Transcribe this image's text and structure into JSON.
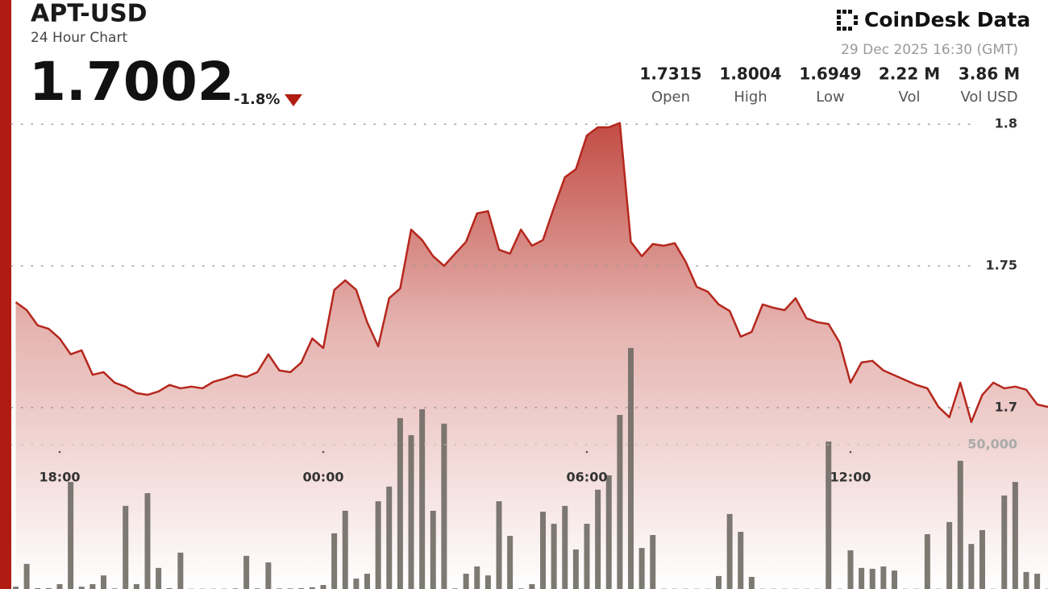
{
  "header": {
    "symbol": "APT-USD",
    "subtitle": "24 Hour Chart",
    "price": "1.7002",
    "change": "-1.8%",
    "brand": "CoinDesk Data",
    "timestamp": "29 Dec 2025 16:30 (GMT)",
    "stats": [
      {
        "value": "1.7315",
        "label": "Open"
      },
      {
        "value": "1.8004",
        "label": "High"
      },
      {
        "value": "1.6949",
        "label": "Low"
      },
      {
        "value": "2.22 M",
        "label": "Vol"
      },
      {
        "value": "3.86 M",
        "label": "Vol USD"
      }
    ]
  },
  "chart_data": {
    "type": "line",
    "categories": [
      null,
      null,
      null,
      null,
      "18:00",
      null,
      null,
      null,
      null,
      null,
      null,
      null,
      null,
      null,
      null,
      null,
      null,
      null,
      null,
      null,
      null,
      null,
      null,
      null,
      null,
      null,
      null,
      null,
      "00:00",
      null,
      null,
      null,
      null,
      null,
      null,
      null,
      null,
      null,
      null,
      null,
      null,
      null,
      null,
      null,
      null,
      null,
      null,
      null,
      null,
      null,
      null,
      null,
      "06:00",
      null,
      null,
      null,
      null,
      null,
      null,
      null,
      null,
      null,
      null,
      null,
      null,
      null,
      null,
      null,
      null,
      null,
      null,
      null,
      null,
      null,
      null,
      null,
      "12:00",
      null,
      null,
      null,
      null,
      null,
      null,
      null,
      null,
      null,
      null,
      null,
      null,
      null,
      null,
      null,
      null,
      null,
      null
    ],
    "series": [
      {
        "name": "Price",
        "color": "#b5271d",
        "values": [
          1.7372,
          1.7344,
          1.729,
          1.7278,
          1.7244,
          1.7188,
          1.7202,
          1.7116,
          1.7125,
          1.7088,
          1.7074,
          1.7051,
          1.7045,
          1.7057,
          1.708,
          1.7068,
          1.7074,
          1.7068,
          1.7091,
          1.7102,
          1.7116,
          1.7108,
          1.7125,
          1.7188,
          1.7131,
          1.7125,
          1.7159,
          1.7244,
          1.721,
          1.7415,
          1.7449,
          1.7415,
          1.7301,
          1.7216,
          1.7386,
          1.742,
          1.7628,
          1.7591,
          1.7534,
          1.75,
          1.7543,
          1.7585,
          1.7685,
          1.7693,
          1.7557,
          1.7543,
          1.7628,
          1.7571,
          1.7591,
          1.7705,
          1.7813,
          1.7841,
          1.796,
          1.7989,
          1.7989,
          1.8004,
          1.7585,
          1.7534,
          1.7577,
          1.7571,
          1.758,
          1.7514,
          1.7426,
          1.7409,
          1.7364,
          1.7341,
          1.725,
          1.7267,
          1.7364,
          1.7352,
          1.7344,
          1.7386,
          1.7315,
          1.7301,
          1.7295,
          1.723,
          1.7088,
          1.7159,
          1.7165,
          1.7131,
          1.7114,
          1.7097,
          1.708,
          1.7068,
          1.7003,
          1.6966,
          1.7088,
          1.6949,
          1.7045,
          1.7088,
          1.7068,
          1.7074,
          1.7063,
          1.7011,
          1.7002
        ]
      },
      {
        "name": "Volume",
        "color": "#6f6a64",
        "axis": "y2",
        "values": [
          800,
          8700,
          300,
          300,
          1700,
          37100,
          800,
          1700,
          4700,
          200,
          28800,
          1700,
          33200,
          7300,
          300,
          12600,
          100,
          100,
          100,
          100,
          200,
          11500,
          200,
          9200,
          200,
          200,
          300,
          600,
          1400,
          19300,
          27100,
          3600,
          5300,
          30400,
          35500,
          59200,
          53300,
          62300,
          27100,
          57300,
          200,
          5300,
          7800,
          4700,
          30400,
          18400,
          200,
          1700,
          26800,
          22600,
          28800,
          13700,
          22600,
          34400,
          39400,
          60300,
          83500,
          14200,
          18700,
          100,
          100,
          100,
          100,
          100,
          4500,
          26000,
          19800,
          4200,
          100,
          100,
          100,
          100,
          100,
          100,
          51100,
          100,
          13400,
          7300,
          7000,
          7800,
          6400,
          100,
          100,
          19000,
          100,
          23200,
          44400,
          15600,
          20400,
          100,
          32400,
          37100,
          5900,
          5300,
          100
        ]
      }
    ],
    "ylim": [
      1.636,
      1.804
    ],
    "yticks": [
      1.7,
      1.75,
      1.8
    ],
    "y2lim": [
      0,
      165000
    ],
    "y2ticks": [
      {
        "value": 50000,
        "label": "50,000"
      }
    ],
    "grid": true
  }
}
